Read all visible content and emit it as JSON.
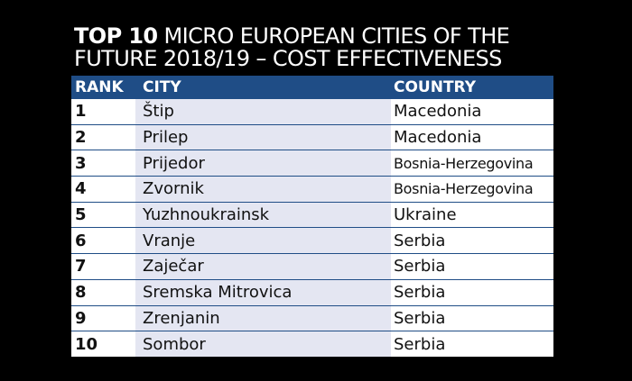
{
  "title": {
    "bold": "TOP 10",
    "line1": " MICRO EUROPEAN CITIES OF THE",
    "line2": "FUTURE 2018/19 – COST EFFECTIVENESS"
  },
  "colors": {
    "header": "#1f4d86",
    "city_column": "#e4e6f2",
    "background": "#000000"
  },
  "headers": {
    "rank": "RANK",
    "city": "CITY",
    "country": "COUNTRY"
  },
  "rows": [
    {
      "rank": "1",
      "city": "Štip",
      "country": "Macedonia"
    },
    {
      "rank": "2",
      "city": "Prilep",
      "country": "Macedonia"
    },
    {
      "rank": "3",
      "city": "Prijedor",
      "country": "Bosnia-Herzegovina"
    },
    {
      "rank": "4",
      "city": "Zvornik",
      "country": "Bosnia-Herzegovina"
    },
    {
      "rank": "5",
      "city": "Yuzhnoukrainsk",
      "country": "Ukraine"
    },
    {
      "rank": "6",
      "city": "Vranje",
      "country": "Serbia"
    },
    {
      "rank": "7",
      "city": "Zaječar",
      "country": "Serbia"
    },
    {
      "rank": "8",
      "city": "Sremska Mitrovica",
      "country": "Serbia"
    },
    {
      "rank": "9",
      "city": "Zrenjanin",
      "country": "Serbia"
    },
    {
      "rank": "10",
      "city": "Sombor",
      "country": "Serbia"
    }
  ]
}
